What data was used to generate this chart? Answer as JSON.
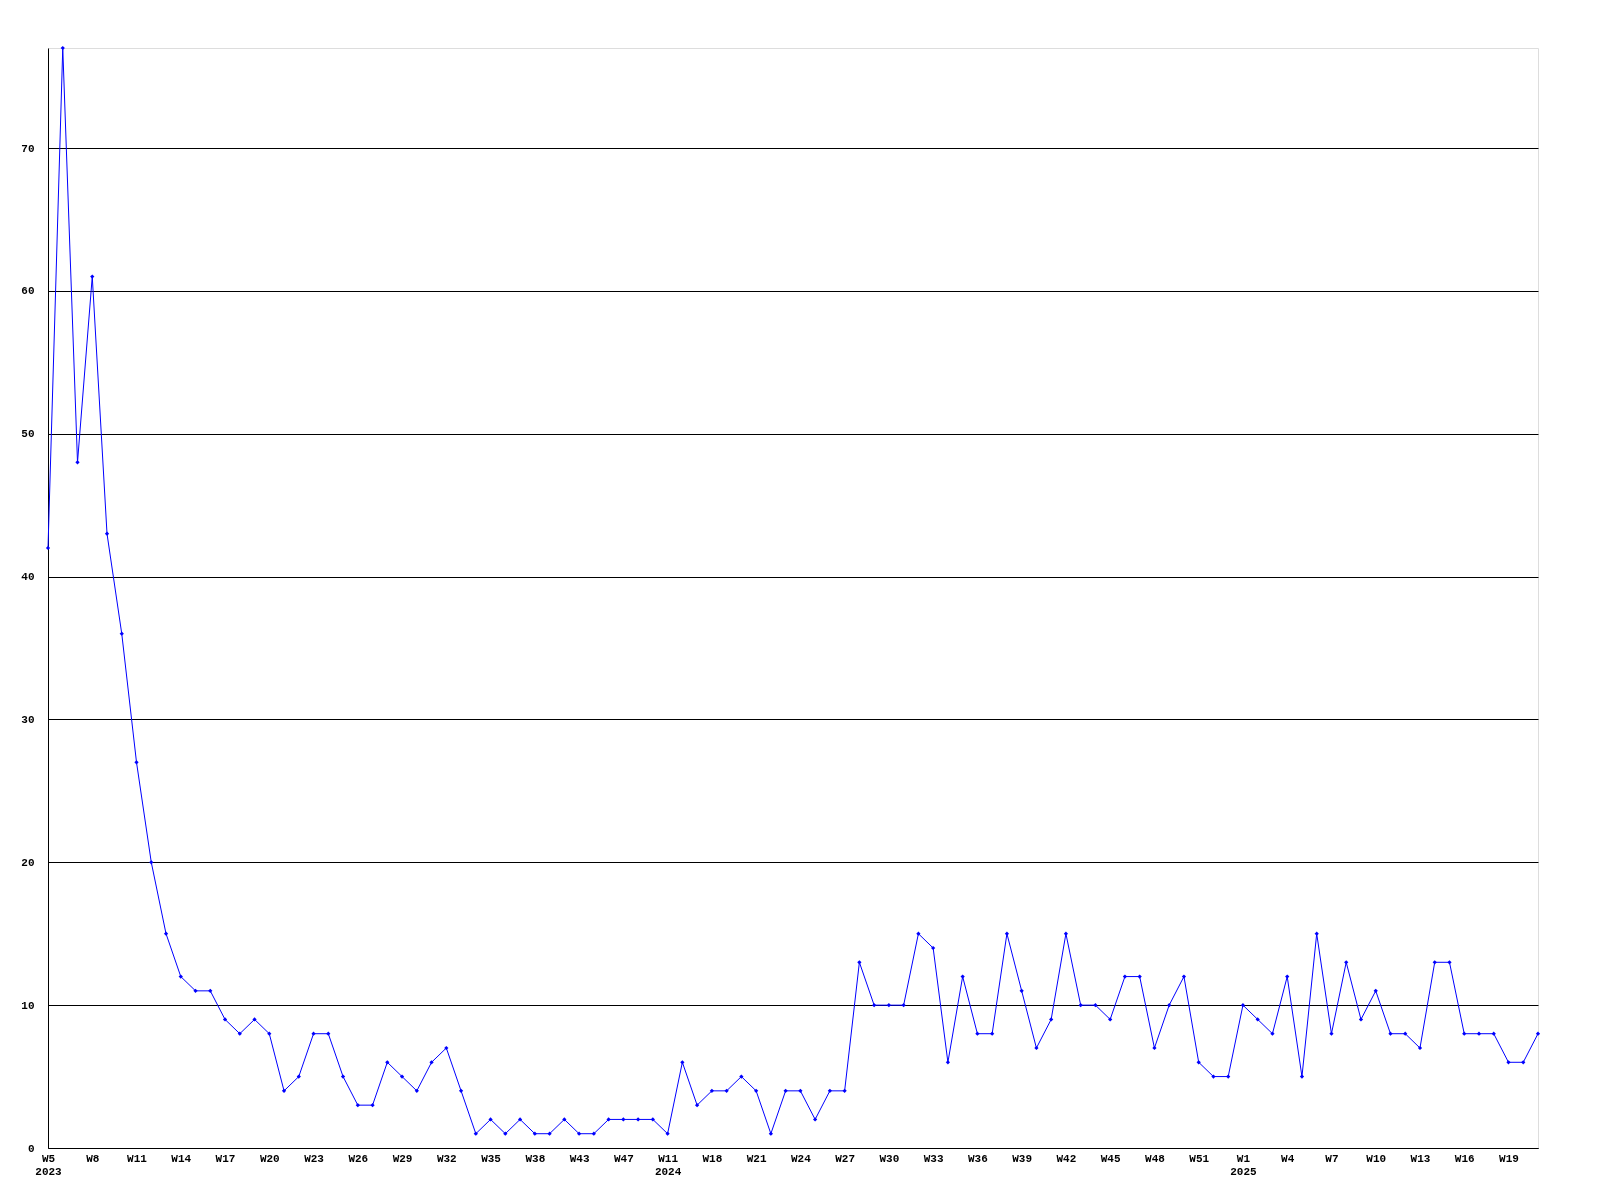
{
  "chart_data": {
    "type": "line",
    "categories": [
      "W5\n2023",
      null,
      null,
      "W8",
      null,
      null,
      "W11",
      null,
      null,
      "W14",
      null,
      null,
      "W17",
      null,
      null,
      "W20",
      null,
      null,
      "W23",
      null,
      null,
      "W26",
      null,
      null,
      "W29",
      null,
      null,
      "W32",
      null,
      null,
      "W35",
      null,
      null,
      "W38",
      null,
      null,
      "W43",
      null,
      null,
      "W47",
      null,
      null,
      "W11\n2024",
      null,
      null,
      "W18",
      null,
      null,
      "W21",
      null,
      null,
      "W24",
      null,
      null,
      "W27",
      null,
      null,
      "W30",
      null,
      null,
      "W33",
      null,
      null,
      "W36",
      null,
      null,
      "W39",
      null,
      null,
      "W42",
      null,
      null,
      "W45",
      null,
      null,
      "W48",
      null,
      null,
      "W51",
      null,
      null,
      "W1\n2025",
      null,
      null,
      "W4",
      null,
      null,
      "W7",
      null,
      null,
      "W10",
      null,
      null,
      "W13",
      null,
      null,
      "W16",
      null,
      null,
      "W19",
      null,
      null
    ],
    "series": [
      {
        "color": "#0000ff",
        "values": [
          42,
          77,
          48,
          61,
          43,
          36,
          27,
          20,
          15,
          12,
          11,
          11,
          9,
          8,
          9,
          8,
          4,
          5,
          8,
          8,
          5,
          3,
          3,
          6,
          5,
          4,
          6,
          7,
          4,
          1,
          2,
          1,
          2,
          1,
          1,
          2,
          1,
          1,
          2,
          2,
          2,
          2,
          1,
          6,
          3,
          4,
          4,
          5,
          4,
          1,
          4,
          4,
          2,
          4,
          4,
          13,
          10,
          10,
          10,
          15,
          14,
          6,
          12,
          8,
          8,
          15,
          11,
          7,
          9,
          15,
          10,
          10,
          9,
          12,
          12,
          7,
          10,
          12,
          6,
          5,
          5,
          10,
          9,
          8,
          12,
          5,
          15,
          8,
          13,
          9,
          11,
          8,
          8,
          7,
          13,
          13,
          8,
          8,
          8,
          6,
          6,
          8
        ]
      }
    ],
    "ylim": [
      0,
      77
    ],
    "yticks": [
      0,
      10,
      20,
      30,
      40,
      50,
      60,
      70
    ],
    "grid": "y",
    "marker": "diamond",
    "line_style": "solid"
  }
}
